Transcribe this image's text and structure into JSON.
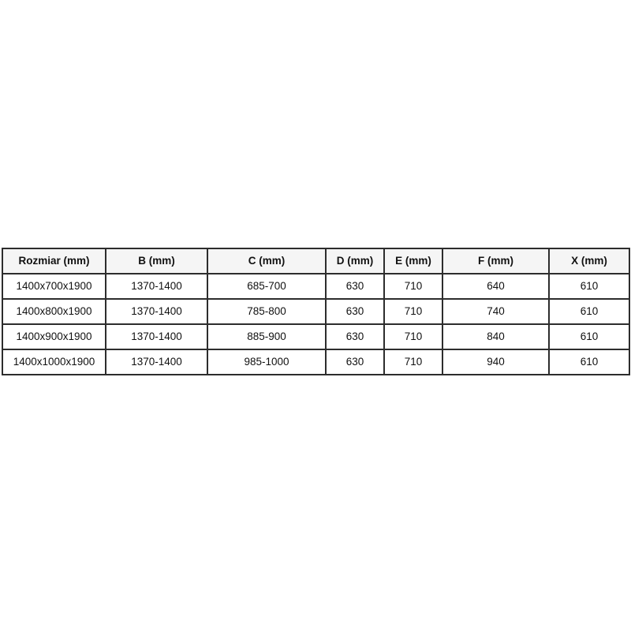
{
  "chart_data": {
    "type": "table",
    "title": "",
    "columns": [
      "Rozmiar (mm)",
      "B (mm)",
      "C (mm)",
      "D (mm)",
      "E (mm)",
      "F (mm)",
      "X (mm)"
    ],
    "rows": [
      [
        "1400x700x1900",
        "1370-1400",
        "685-700",
        "630",
        "710",
        "640",
        "610"
      ],
      [
        "1400x800x1900",
        "1370-1400",
        "785-800",
        "630",
        "710",
        "740",
        "610"
      ],
      [
        "1400x900x1900",
        "1370-1400",
        "885-900",
        "630",
        "710",
        "840",
        "610"
      ],
      [
        "1400x1000x1900",
        "1370-1400",
        "985-1000",
        "630",
        "710",
        "940",
        "610"
      ]
    ],
    "layout": {
      "legend": "none",
      "grid": "full-borders",
      "header_style": "bold-centered"
    },
    "colors": {
      "border": "#2d2d2d",
      "header_background": "#f5f5f5",
      "cell_background": "#ffffff",
      "text": "#111111",
      "page_background": "#ffffff"
    }
  }
}
